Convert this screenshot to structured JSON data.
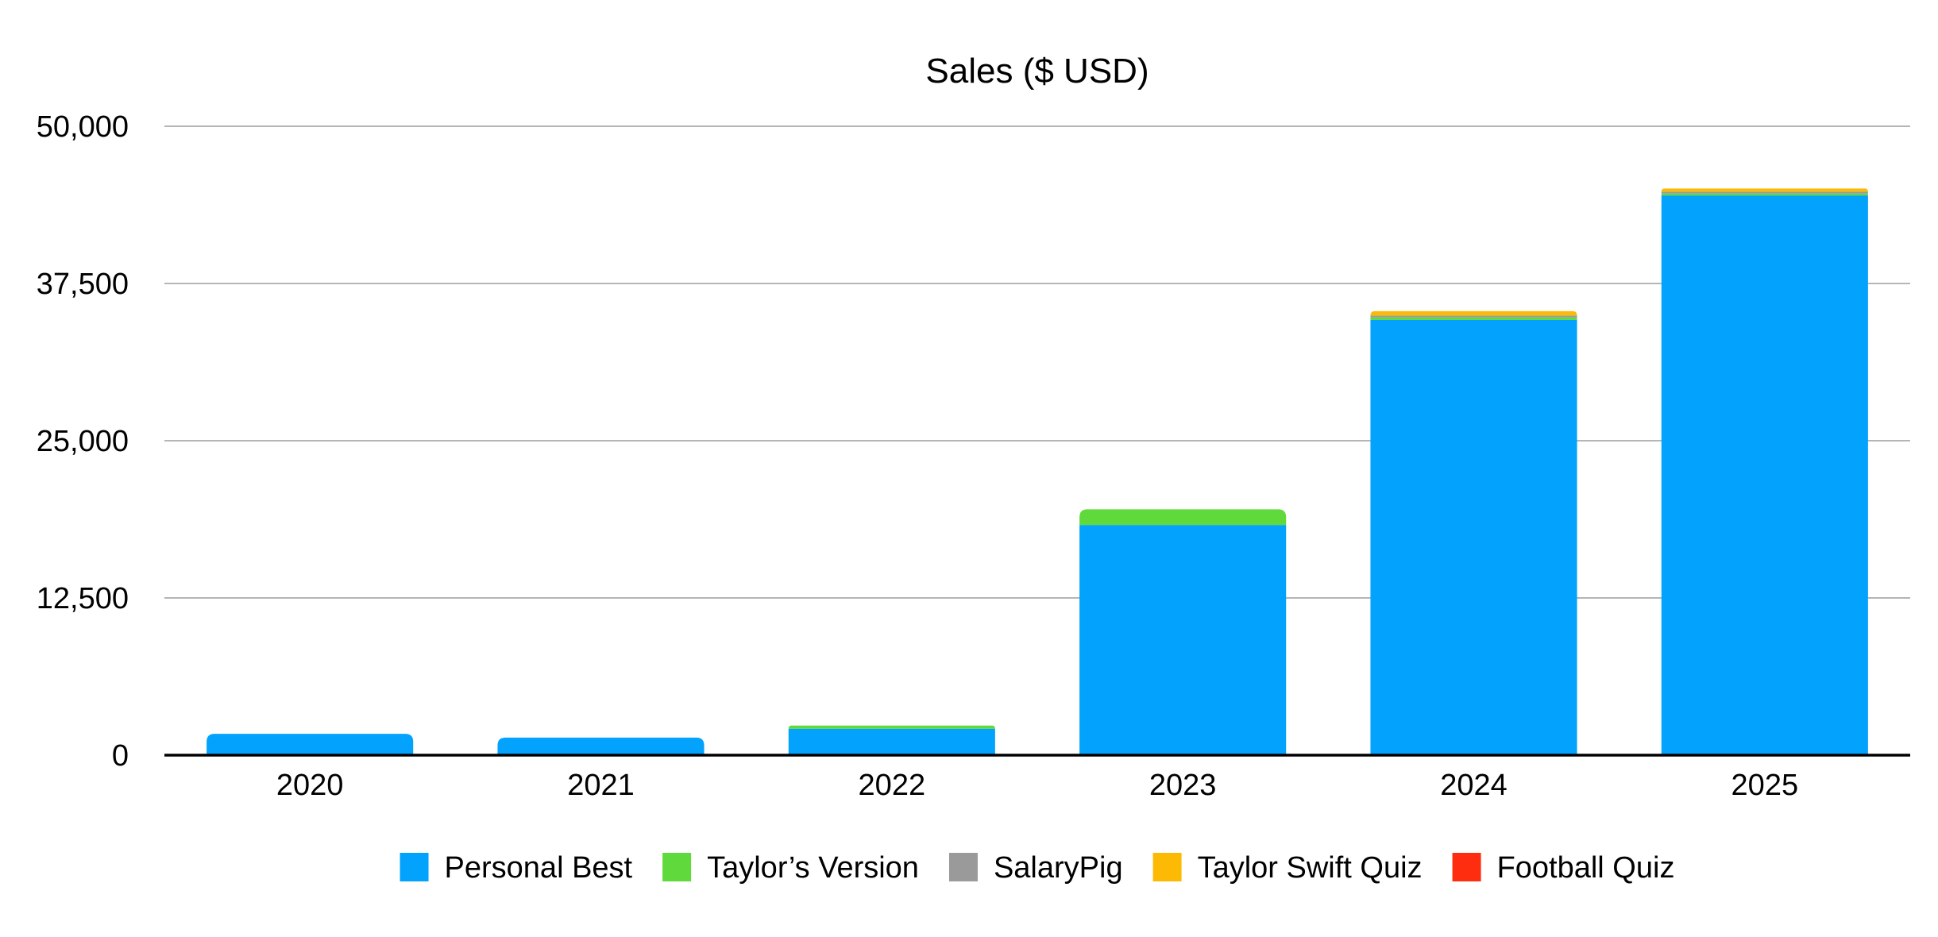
{
  "chart_data": {
    "type": "bar",
    "stacked": true,
    "title": "Sales ($ USD)",
    "xlabel": "",
    "ylabel": "",
    "categories": [
      "2020",
      "2021",
      "2022",
      "2023",
      "2024",
      "2025"
    ],
    "ylim": [
      0,
      50000
    ],
    "yticks": [
      0,
      12500,
      25000,
      37500,
      50000
    ],
    "ytick_labels": [
      "0",
      "12,500",
      "25,000",
      "37,500",
      "50,000"
    ],
    "grid": true,
    "legend_position": "bottom",
    "series": [
      {
        "name": "Personal Best",
        "color": "#03A2FC",
        "values": [
          1700,
          1400,
          2100,
          18300,
          34600,
          44500
        ]
      },
      {
        "name": "Taylor’s Version",
        "color": "#5FD93B",
        "values": [
          0,
          0,
          250,
          1250,
          200,
          150
        ]
      },
      {
        "name": "SalaryPig",
        "color": "#9A9A9A",
        "values": [
          0,
          0,
          0,
          0,
          150,
          150
        ]
      },
      {
        "name": "Taylor Swift Quiz",
        "color": "#FDBA05",
        "values": [
          0,
          0,
          0,
          0,
          350,
          250
        ]
      },
      {
        "name": "Football Quiz",
        "color": "#FF2D0F",
        "values": [
          0,
          0,
          0,
          0,
          0,
          0
        ]
      }
    ]
  }
}
